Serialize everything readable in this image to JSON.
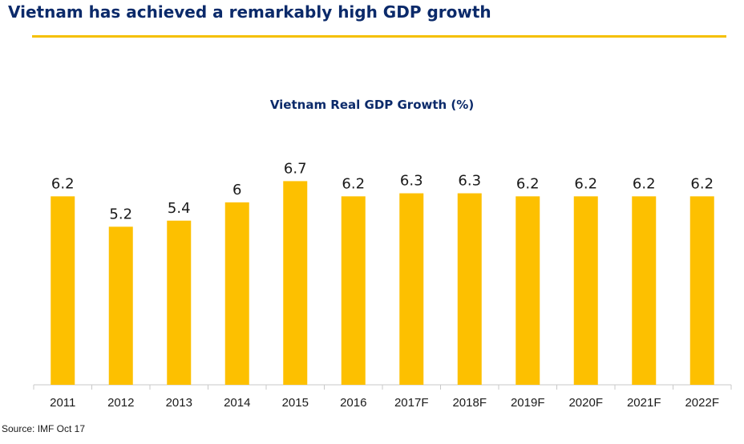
{
  "header": {
    "title": "Vietnam has achieved a remarkably high GDP growth"
  },
  "colors": {
    "accent": "#f5c000",
    "title": "#0b2a6a",
    "bar": "#fdc000"
  },
  "chart_data": {
    "type": "bar",
    "title": "Vietnam Real GDP Growth (%)",
    "categories": [
      "2011",
      "2012",
      "2013",
      "2014",
      "2015",
      "2016",
      "2017F",
      "2018F",
      "2019F",
      "2020F",
      "2021F",
      "2022F"
    ],
    "values": [
      6.2,
      5.2,
      5.4,
      6,
      6.7,
      6.2,
      6.3,
      6.3,
      6.2,
      6.2,
      6.2,
      6.2
    ],
    "data_labels": [
      "6.2",
      "5.2",
      "5.4",
      "6",
      "6.7",
      "6.2",
      "6.3",
      "6.3",
      "6.2",
      "6.2",
      "6.2",
      "6.2"
    ],
    "xlabel": "",
    "ylabel": "",
    "grid": false,
    "legend": "none"
  },
  "footer": {
    "source": "Source: IMF Oct 17"
  }
}
